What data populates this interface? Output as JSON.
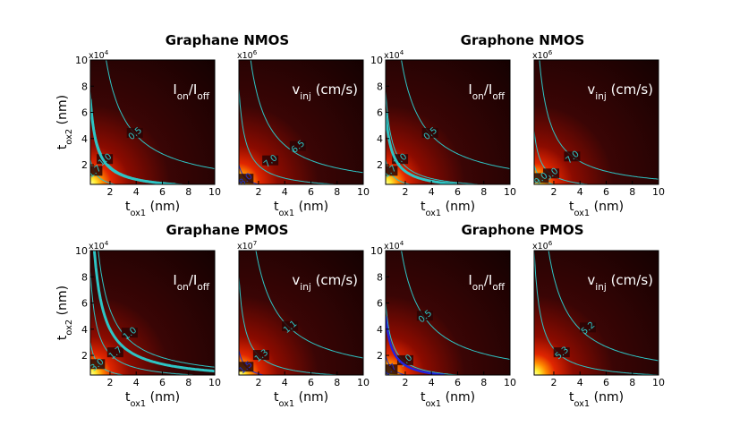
{
  "figure": {
    "group_titles": [
      "Graphane NMOS",
      "Graphone NMOS",
      "Graphane PMOS",
      "Graphone PMOS"
    ]
  },
  "chart_data": [
    {
      "type": "heatmap",
      "id": "p0",
      "quantity": "Ion/Ioff",
      "scale_label": "x10",
      "scale_exp": "4",
      "x_ticks": [
        "2",
        "4",
        "6",
        "8",
        "10"
      ],
      "y_ticks": [
        "2",
        "4",
        "6",
        "8",
        "10"
      ],
      "xlabel": "t",
      "xlabel_sub": "ox1",
      "xlabel_unit": " (nm)",
      "ylabel": "t",
      "ylabel_sub": "ox2",
      "ylabel_unit": " (nm)",
      "xlim": [
        0.5,
        10
      ],
      "ylim": [
        0.5,
        10
      ],
      "show_ylabel": true,
      "contours": [
        {
          "level": "0.5",
          "k": 17,
          "color": "#2ec4c4",
          "width": 1,
          "label_at": [
            3.9,
            4.4
          ]
        },
        {
          "level": "1.0",
          "k": 3.8,
          "color": "#2ec4c4",
          "width": 1,
          "label_at": [
            1.6,
            2.4
          ]
        },
        {
          "level": "1.7",
          "k": 1.2,
          "color": "#2ec4c4",
          "width": 1,
          "label_at": [
            0.8,
            1.5
          ]
        },
        {
          "level": "",
          "k": 3.5,
          "color": "#2ec4c4",
          "width": 3
        }
      ]
    },
    {
      "type": "heatmap",
      "id": "p1",
      "quantity": "vinj (cm/s)",
      "scale_label": "x10",
      "scale_exp": "6",
      "x_ticks": [
        "2",
        "4",
        "6",
        "8",
        "10"
      ],
      "y_ticks": [],
      "xlabel": "t",
      "xlabel_sub": "ox1",
      "xlabel_unit": " (nm)",
      "xlim": [
        0.5,
        10
      ],
      "ylim": [
        0.5,
        10
      ],
      "show_ylabel": false,
      "contours": [
        {
          "level": "6.5",
          "k": 14,
          "color": "#2ec4c4",
          "width": 1,
          "label_at": [
            5.0,
            3.4
          ]
        },
        {
          "level": "7.0",
          "k": 3.9,
          "color": "#2ec4c4",
          "width": 1,
          "label_at": [
            2.9,
            2.3
          ]
        },
        {
          "level": "8.0",
          "k": 1.0,
          "color": "#1a2fd0",
          "width": 1,
          "label_at": [
            1.0,
            0.9
          ]
        }
      ]
    },
    {
      "type": "heatmap",
      "id": "p2",
      "quantity": "Ion/Ioff",
      "scale_label": "x10",
      "scale_exp": "4",
      "x_ticks": [
        "2",
        "4",
        "6",
        "8",
        "10"
      ],
      "y_ticks": [
        "2",
        "4",
        "6",
        "8",
        "10"
      ],
      "xlabel": "t",
      "xlabel_sub": "ox1",
      "xlabel_unit": " (nm)",
      "xlim": [
        0.5,
        10
      ],
      "ylim": [
        0.5,
        10
      ],
      "show_ylabel": false,
      "contours": [
        {
          "level": "0.5",
          "k": 17,
          "color": "#2ec4c4",
          "width": 1,
          "label_at": [
            3.9,
            4.4
          ]
        },
        {
          "level": "1.0",
          "k": 3.8,
          "color": "#2ec4c4",
          "width": 1,
          "label_at": [
            1.6,
            2.4
          ]
        },
        {
          "level": "1.7",
          "k": 1.2,
          "color": "#2ec4c4",
          "width": 1,
          "label_at": [
            0.8,
            1.5
          ]
        },
        {
          "level": "",
          "k": 3.0,
          "color": "#2ec4c4",
          "width": 3
        }
      ]
    },
    {
      "type": "heatmap",
      "id": "p3",
      "quantity": "vinj (cm/s)",
      "scale_label": "x10",
      "scale_exp": "6",
      "x_ticks": [
        "2",
        "4",
        "6",
        "8",
        "10"
      ],
      "y_ticks": [],
      "xlabel": "t",
      "xlabel_sub": "ox1",
      "xlabel_unit": " (nm)",
      "xlim": [
        0.5,
        10
      ],
      "ylim": [
        0.5,
        10
      ],
      "show_ylabel": false,
      "contours": [
        {
          "level": "7.0",
          "k": 9,
          "color": "#2ec4c4",
          "width": 1,
          "label_at": [
            3.4,
            2.6
          ]
        },
        {
          "level": "8.0",
          "k": 2.3,
          "color": "#2ec4c4",
          "width": 1,
          "label_at": [
            1.8,
            1.3
          ]
        },
        {
          "level": "9.0",
          "k": 1.0,
          "color": "#2ec4c4",
          "width": 1,
          "label_at": [
            1.0,
            0.95
          ]
        }
      ]
    },
    {
      "type": "heatmap",
      "id": "p4",
      "quantity": "Ion/Ioff",
      "scale_label": "x10",
      "scale_exp": "4",
      "x_ticks": [
        "2",
        "4",
        "6",
        "8",
        "10"
      ],
      "y_ticks": [
        "2",
        "4",
        "6",
        "8",
        "10"
      ],
      "xlabel": "t",
      "xlabel_sub": "ox1",
      "xlabel_unit": " (nm)",
      "ylabel": "t",
      "ylabel_sub": "ox2",
      "ylabel_unit": " (nm)",
      "xlim": [
        0.5,
        10
      ],
      "ylim": [
        0.5,
        10
      ],
      "show_ylabel": true,
      "contours": [
        {
          "level": "1.0",
          "k": 11,
          "color": "#2ec4c4",
          "width": 1,
          "label_at": [
            3.5,
            3.7
          ]
        },
        {
          "level": "1.7",
          "k": 4.2,
          "color": "#2ec4c4",
          "width": 1,
          "label_at": [
            2.4,
            2.2
          ]
        },
        {
          "level": "3.0",
          "k": 1.5,
          "color": "#2ec4c4",
          "width": 1,
          "label_at": [
            1.0,
            1.3
          ]
        },
        {
          "level": "",
          "k": 8.0,
          "color": "#2ec4c4",
          "width": 3
        }
      ]
    },
    {
      "type": "heatmap",
      "id": "p5",
      "quantity": "vinj (cm/s)",
      "scale_label": "x10",
      "scale_exp": "7",
      "x_ticks": [
        "2",
        "4",
        "6",
        "8",
        "10"
      ],
      "y_ticks": [],
      "xlabel": "t",
      "xlabel_sub": "ox1",
      "xlabel_unit": " (nm)",
      "xlim": [
        0.5,
        10
      ],
      "ylim": [
        0.5,
        10
      ],
      "show_ylabel": false,
      "contours": [
        {
          "level": "1.1",
          "k": 18,
          "color": "#2ec4c4",
          "width": 1,
          "label_at": [
            4.4,
            4.2
          ]
        },
        {
          "level": "1.3",
          "k": 4.0,
          "color": "#2ec4c4",
          "width": 1,
          "label_at": [
            2.2,
            2.0
          ]
        },
        {
          "level": "1.5",
          "k": 1.2,
          "color": "#1a2fd0",
          "width": 1,
          "label_at": [
            1.0,
            1.1
          ]
        }
      ]
    },
    {
      "type": "heatmap",
      "id": "p6",
      "quantity": "Ion/Ioff",
      "scale_label": "x10",
      "scale_exp": "4",
      "x_ticks": [
        "2",
        "4",
        "6",
        "8",
        "10"
      ],
      "y_ticks": [
        "2",
        "4",
        "6",
        "8",
        "10"
      ],
      "xlabel": "t",
      "xlabel_sub": "ox1",
      "xlabel_unit": " (nm)",
      "xlim": [
        0.5,
        10
      ],
      "ylim": [
        0.5,
        10
      ],
      "show_ylabel": false,
      "contours": [
        {
          "level": "0.5",
          "k": 17,
          "color": "#2ec4c4",
          "width": 1,
          "label_at": [
            3.5,
            5.0
          ]
        },
        {
          "level": "1.0",
          "k": 3.0,
          "color": "#2ec4c4",
          "width": 1,
          "label_at": [
            2.0,
            1.6
          ]
        },
        {
          "level": "1.7",
          "k": 1.0,
          "color": "#1a2fd0",
          "width": 1,
          "label_at": [
            0.8,
            0.9
          ]
        },
        {
          "level": "",
          "k": 2.5,
          "color": "#2222dd",
          "width": 2.5
        }
      ]
    },
    {
      "type": "heatmap",
      "id": "p7",
      "quantity": "vinj (cm/s)",
      "scale_label": "x10",
      "scale_exp": "6",
      "x_ticks": [
        "2",
        "4",
        "6",
        "8",
        "10"
      ],
      "y_ticks": [],
      "xlabel": "t",
      "xlabel_sub": "ox1",
      "xlabel_unit": " (nm)",
      "xlim": [
        0.5,
        10
      ],
      "ylim": [
        0.5,
        10
      ],
      "show_ylabel": false,
      "contours": [
        {
          "level": "5.2",
          "k": 16,
          "color": "#2ec4c4",
          "width": 1,
          "label_at": [
            4.6,
            4.1
          ]
        },
        {
          "level": "5.3",
          "k": 5.0,
          "color": "#2ec4c4",
          "width": 1,
          "label_at": [
            2.6,
            2.2
          ]
        }
      ]
    }
  ]
}
